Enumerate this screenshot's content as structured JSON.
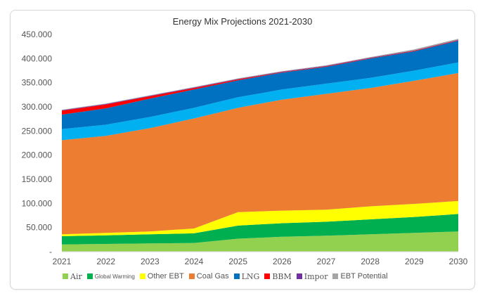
{
  "chart_data": {
    "type": "area",
    "stacked": true,
    "title": "Energy Mix Projections 2021-2030",
    "x": [
      "2021",
      "2022",
      "2023",
      "2024",
      "2025",
      "2026",
      "2027",
      "2028",
      "2029",
      "2030"
    ],
    "y_tick_labels": [
      "-",
      "50.000",
      "100.000",
      "150.000",
      "200.000",
      "250.000",
      "300.000",
      "350.000",
      "400.000",
      "450.000"
    ],
    "ylim": [
      0,
      450000
    ],
    "grid": false,
    "legend_position": "bottom",
    "series": [
      {
        "name": "Air",
        "color": "#92d050",
        "values": [
          15000,
          16000,
          17000,
          18000,
          27000,
          31000,
          33000,
          36000,
          39000,
          42000
        ]
      },
      {
        "name": "Global Warming",
        "color": "#00b050",
        "values": [
          17000,
          18000,
          19000,
          20000,
          27000,
          28000,
          29000,
          31000,
          33000,
          36000
        ]
      },
      {
        "name": "Other EBT",
        "color": "#ffff00",
        "values": [
          4000,
          5000,
          6000,
          10000,
          28000,
          26000,
          25000,
          27000,
          27000,
          27000
        ]
      },
      {
        "name": "Coal Gas",
        "color": "#ed7d31",
        "values": [
          195000,
          201000,
          214000,
          228000,
          216000,
          230000,
          240000,
          245000,
          255000,
          265000
        ]
      },
      {
        "name": "LNG",
        "color": "#00b0f0",
        "values": [
          23000,
          23000,
          23000,
          22000,
          22000,
          21000,
          21000,
          21000,
          21000,
          22000
        ]
      },
      {
        "name": "LNG",
        "color": "#0070c0",
        "values": [
          30000,
          34000,
          38000,
          38000,
          35000,
          35000,
          35000,
          40000,
          40000,
          45000
        ]
      },
      {
        "name": "BBM",
        "color": "#ff0000",
        "values": [
          8000,
          8000,
          5000,
          3000,
          2000,
          1000,
          1000,
          1000,
          1000,
          1000
        ]
      },
      {
        "name": "Impor",
        "color": "#7030a0",
        "values": [
          1000,
          1000,
          1000,
          1000,
          1000,
          1000,
          1000,
          1000,
          1000,
          1000
        ]
      },
      {
        "name": "EBT Potential",
        "color": "#a5a5a5",
        "values": [
          1000,
          1000,
          1000,
          1000,
          1000,
          1000,
          1000,
          1000,
          2000,
          2000
        ]
      }
    ],
    "legend": [
      {
        "label": "Air",
        "color": "#92d050",
        "style": "serif"
      },
      {
        "label": "Global Warming",
        "color": "#00b050",
        "style": "small"
      },
      {
        "label": "Other EBT",
        "color": "#ffff00",
        "style": "sans"
      },
      {
        "label": "Coal Gas",
        "color": "#ed7d31",
        "style": "sans"
      },
      {
        "label": "LNG",
        "color": "#0070c0",
        "style": "serif"
      },
      {
        "label": "BBM",
        "color": "#ff0000",
        "style": "serif"
      },
      {
        "label": "Impor",
        "color": "#7030a0",
        "style": "serif"
      },
      {
        "label": "EBT Potential",
        "color": "#a5a5a5",
        "style": "sans"
      }
    ]
  }
}
